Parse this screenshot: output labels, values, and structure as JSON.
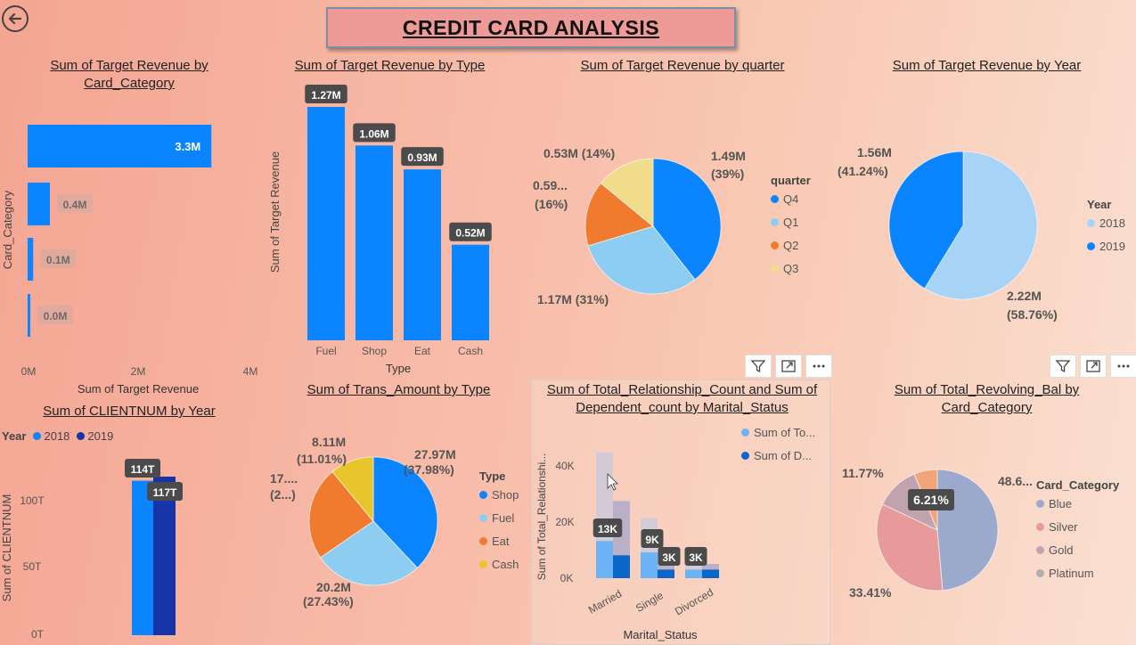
{
  "header": {
    "title": "CREDIT CARD ANALYSIS"
  },
  "colors": {
    "blue": "#0b84ff",
    "lightblue": "#8ecdf2",
    "orange": "#f07a2e",
    "yellow": "#e9c52c",
    "darkblue": "#1634a8"
  },
  "charts": {
    "card_category": {
      "title": "Sum of Target Revenue by Card_Category",
      "ylabel": "Card_Category",
      "xlabel": "Sum of Target Revenue",
      "ticks": [
        "0M",
        "2M",
        "4M"
      ],
      "chart_data": {
        "type": "bar",
        "orientation": "horizontal",
        "categories": [
          "",
          "",
          "",
          ""
        ],
        "values": [
          3.3,
          0.4,
          0.1,
          0.0
        ],
        "labels": [
          "3.3M",
          "0.4M",
          "0.1M",
          "0.0M"
        ],
        "xlim": [
          0,
          4
        ]
      }
    },
    "by_type": {
      "title": "Sum of Target Revenue by Type",
      "ylabel": "Sum of Target Revenue",
      "xlabel": "Type",
      "chart_data": {
        "type": "bar",
        "categories": [
          "Fuel",
          "Shop",
          "Eat",
          "Cash"
        ],
        "values": [
          1.27,
          1.06,
          0.93,
          0.52
        ],
        "labels": [
          "1.27M",
          "1.06M",
          "0.93M",
          "0.52M"
        ]
      }
    },
    "by_quarter": {
      "title": "Sum of Target Revenue by quarter",
      "legend_title": "quarter",
      "legend": [
        "Q4",
        "Q1",
        "Q2",
        "Q3"
      ],
      "labels": [
        "1.49M",
        "(39%)",
        "1.17M (31%)",
        "0.59...",
        "(16%)",
        "0.53M (14%)"
      ],
      "chart_data": {
        "type": "pie",
        "categories": [
          "Q4",
          "Q1",
          "Q2",
          "Q3"
        ],
        "values": [
          1.49,
          1.17,
          0.59,
          0.53
        ],
        "percent": [
          39,
          31,
          16,
          14
        ]
      }
    },
    "by_year": {
      "title": "Sum of Target Revenue by Year",
      "legend_title": "Year",
      "legend": [
        "2018",
        "2019"
      ],
      "labels": [
        "1.56M",
        "(41.24%)",
        "2.22M",
        "(58.76%)"
      ],
      "chart_data": {
        "type": "pie",
        "categories": [
          "2018",
          "2019"
        ],
        "values": [
          2.22,
          1.56
        ],
        "percent": [
          58.76,
          41.24
        ]
      }
    },
    "clientnum": {
      "title": "Sum of CLIENTNUM by Year",
      "legend_title": "Year",
      "legend": [
        "2018",
        "2019"
      ],
      "ylabel": "Sum of CLIENTNUM",
      "ticks": [
        "100T",
        "50T",
        "0T"
      ],
      "chart_data": {
        "type": "bar",
        "categories": [
          "2018",
          "2019"
        ],
        "values": [
          114,
          117
        ],
        "labels": [
          "114T",
          "117T"
        ],
        "ylim": [
          0,
          117
        ]
      }
    },
    "trans_amount": {
      "title": "Sum of Trans_Amount by Type",
      "legend_title": "Type",
      "legend": [
        "Shop",
        "Fuel",
        "Eat",
        "Cash"
      ],
      "labels": [
        "27.97M",
        "(37.98%)",
        "20.2M",
        "(27.43%)",
        "17....",
        "(2...)",
        "8.11M",
        "(11.01%)"
      ],
      "chart_data": {
        "type": "pie",
        "categories": [
          "Shop",
          "Fuel",
          "Eat",
          "Cash"
        ],
        "values": [
          27.97,
          20.2,
          17.37,
          8.11
        ],
        "percent": [
          37.98,
          27.43,
          23.58,
          11.01
        ]
      }
    },
    "marital": {
      "title": "Sum of Total_Relationship_Count and Sum of Dependent_count by Marital_Status",
      "legend": [
        "Sum of To...",
        "Sum of D..."
      ],
      "ylabel": "Sum of Total_Relationshi...",
      "xlabel": "Marital_Status",
      "ticks": [
        "40K",
        "20K",
        "0K"
      ],
      "chart_data": {
        "type": "bar",
        "categories": [
          "Married",
          "Single",
          "Divorced"
        ],
        "series": [
          {
            "name": "Sum of To...",
            "values": [
              13,
              9,
              3
            ],
            "labels": [
              "13K",
              "9K",
              "3K"
            ]
          },
          {
            "name": "Sum of D...",
            "values": [
              8,
              3,
              3
            ],
            "labels": [
              "",
              "3K",
              "3K"
            ]
          }
        ],
        "ylim": [
          0,
          48
        ]
      }
    },
    "revolving": {
      "title": "Sum of Total_Revolving_Bal by Card_Category",
      "legend_title": "Card_Category",
      "legend": [
        "Blue",
        "Silver",
        "Gold",
        "Platinum"
      ],
      "labels": [
        "48.6...",
        "33.41%",
        "11.77%",
        "6.21%"
      ],
      "chart_data": {
        "type": "pie",
        "categories": [
          "Blue",
          "Silver",
          "Gold",
          "Platinum"
        ],
        "values": [
          48.61,
          33.41,
          11.77,
          6.21
        ]
      }
    }
  }
}
